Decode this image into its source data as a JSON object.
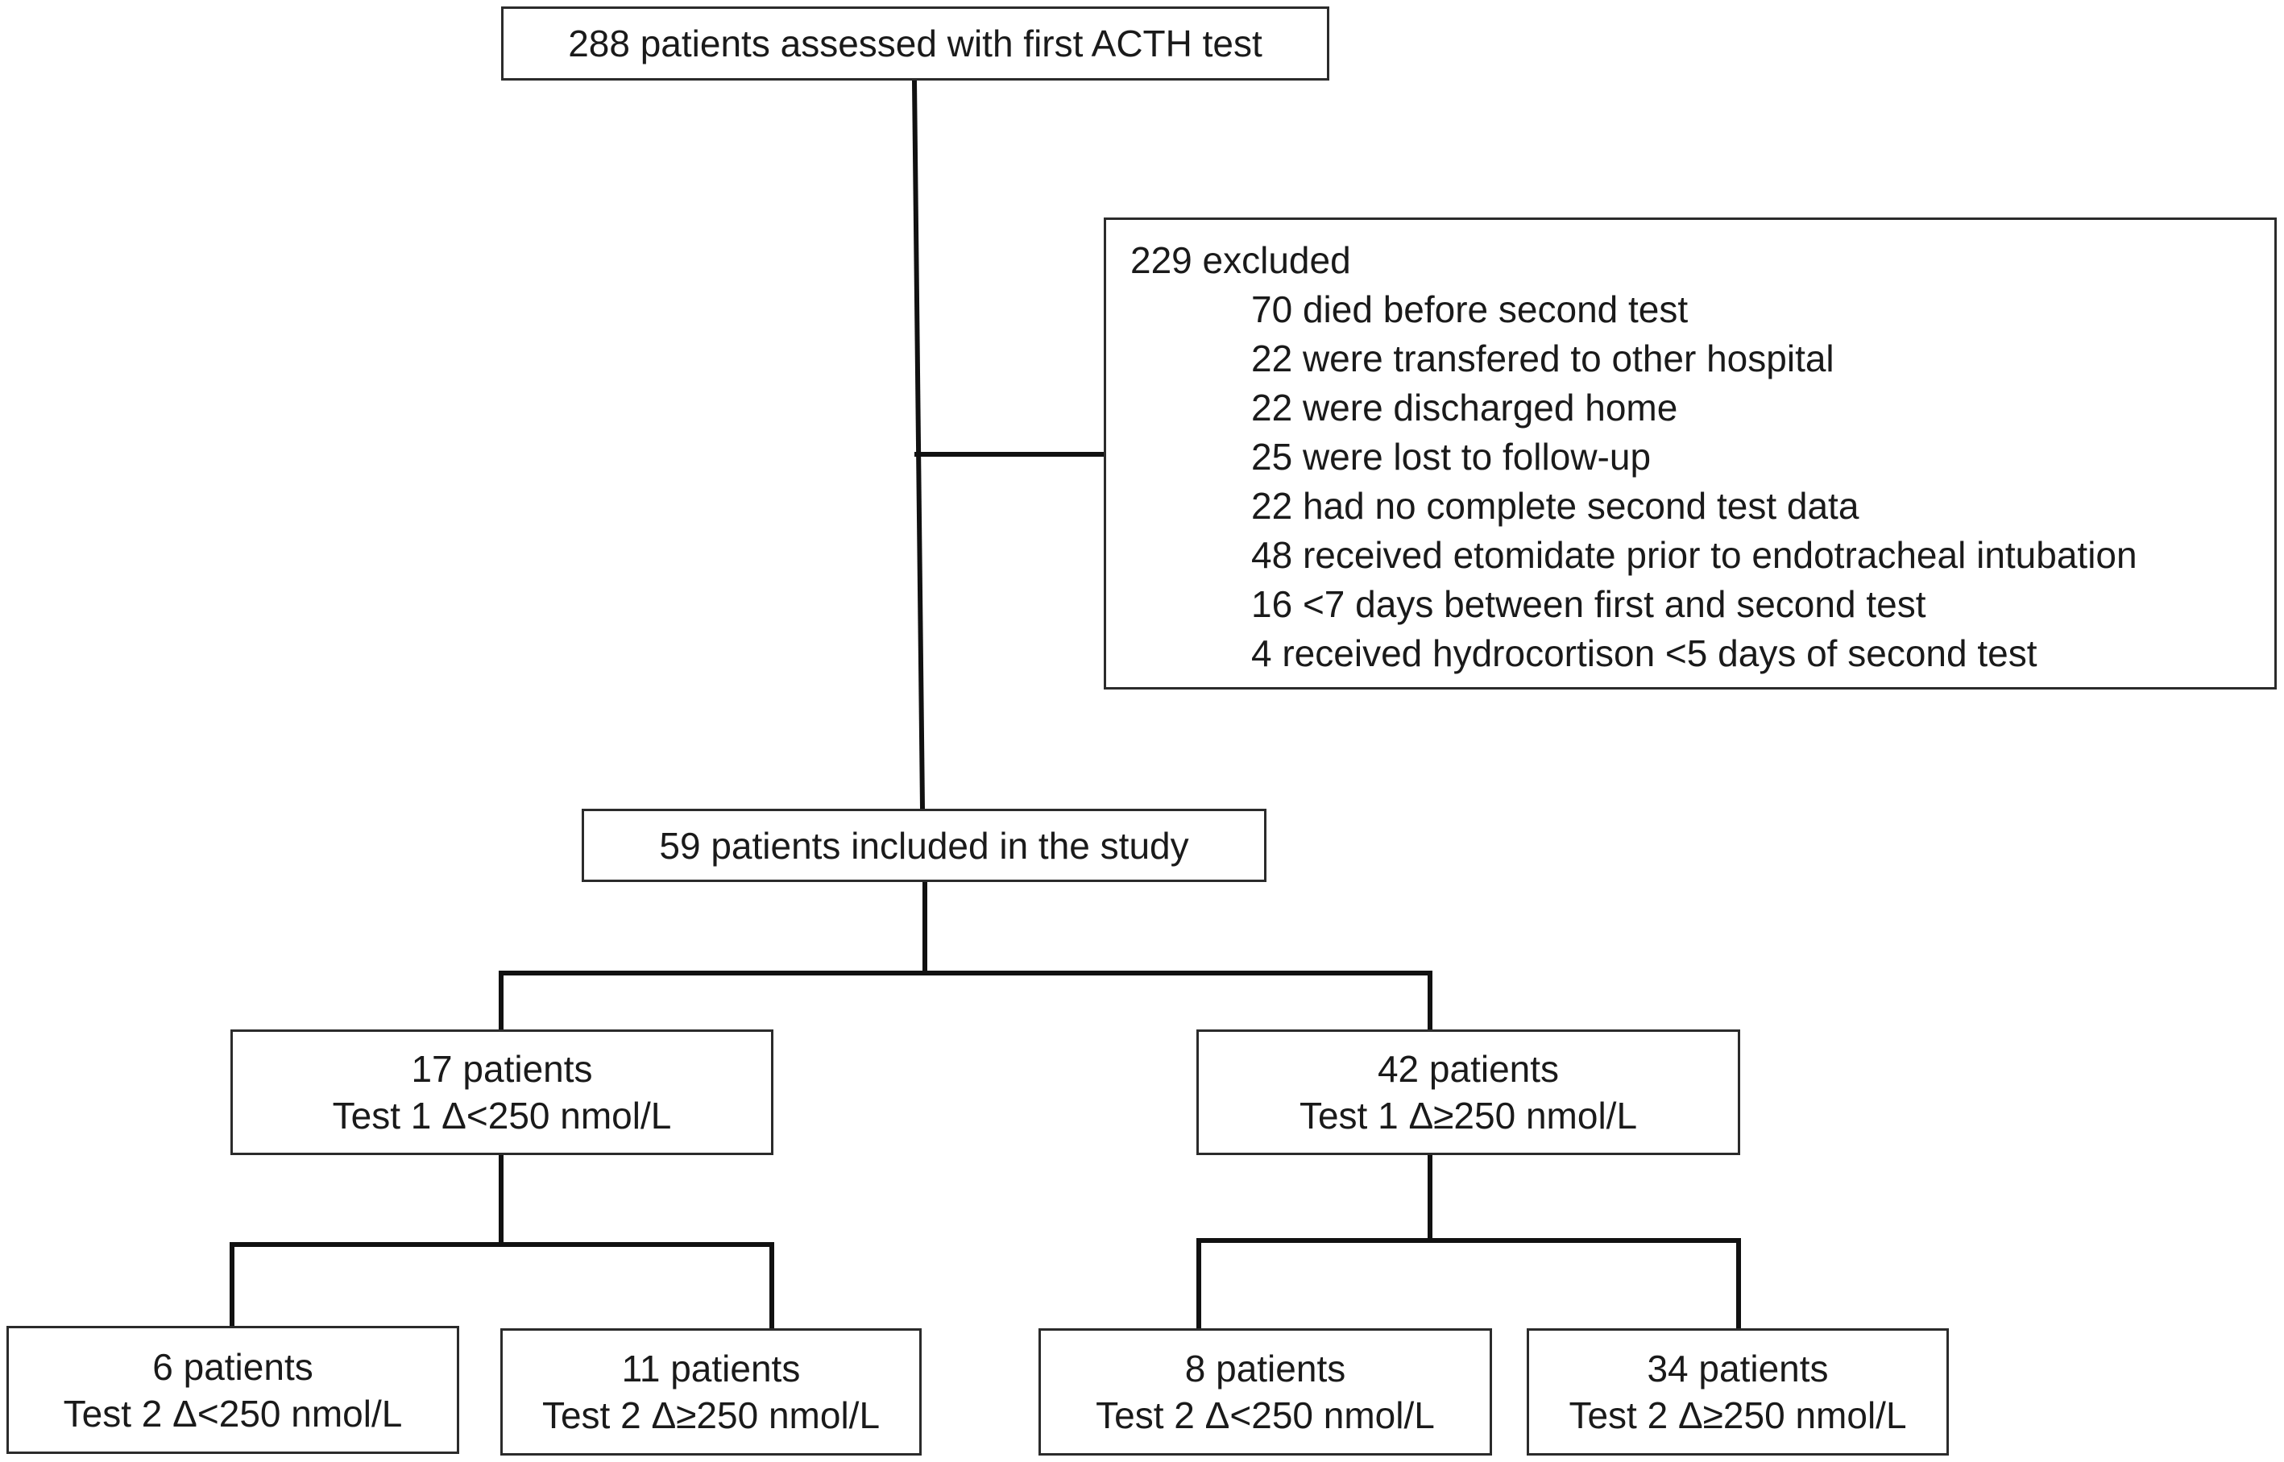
{
  "boxes": {
    "assessed": "288 patients assessed with first ACTH test",
    "excluded": {
      "title": "229 excluded",
      "reasons": [
        "70 died before second test",
        "22 were transfered to other hospital",
        "22 were discharged home",
        "25 were lost to follow-up",
        "22 had no complete second test data",
        "48 received etomidate prior to endotracheal intubation",
        "16 <7 days between first and second test",
        "4 received hydrocortison <5 days of second test"
      ]
    },
    "included": "59 patients included in the study",
    "group_low": {
      "count": "17 patients",
      "criterion": "Test 1 Δ<250 nmol/L"
    },
    "group_high": {
      "count": "42 patients",
      "criterion": "Test 1 Δ≥250 nmol/L"
    },
    "low_low": {
      "count": "6 patients",
      "criterion": "Test 2 Δ<250 nmol/L"
    },
    "low_high": {
      "count": "11 patients",
      "criterion": "Test 2 Δ≥250 nmol/L"
    },
    "high_low": {
      "count": "8 patients",
      "criterion": "Test 2 Δ<250 nmol/L"
    },
    "high_high": {
      "count": "34 patients",
      "criterion": "Test 2 Δ≥250 nmol/L"
    }
  }
}
